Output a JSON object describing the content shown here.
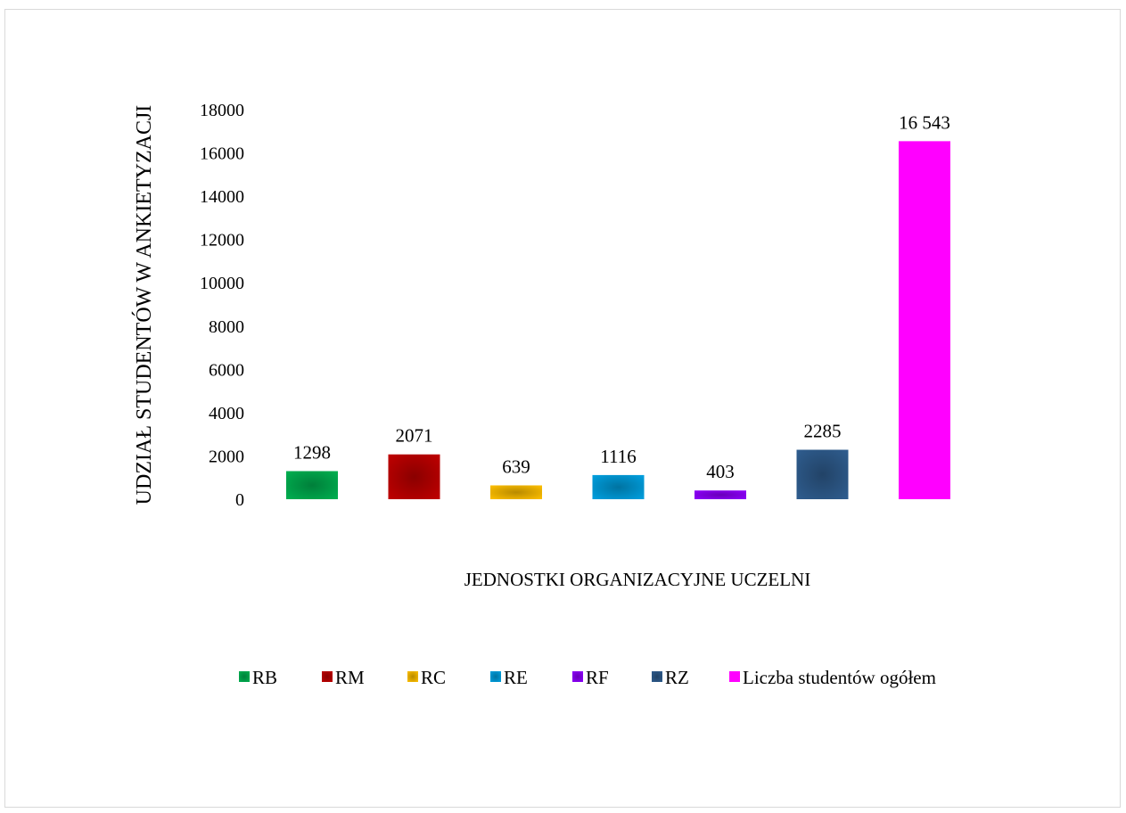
{
  "chart_data": {
    "type": "bar",
    "title": "",
    "xlabel": "JEDNOSTKI ORGANIZACYJNE UCZELNI",
    "ylabel": "UDZIAŁ STUDENTÓW W ANKIETYZACJI",
    "ylim": [
      0,
      18000
    ],
    "yticks": [
      "0",
      "2000",
      "4000",
      "6000",
      "8000",
      "10000",
      "12000",
      "14000",
      "16000",
      "18000"
    ],
    "grid": false,
    "legend_position": "bottom",
    "series": [
      {
        "name": "RB",
        "value": 1298,
        "label": "1298",
        "color": "#00b050"
      },
      {
        "name": "RM",
        "value": 2071,
        "label": "2071",
        "color": "#c00000"
      },
      {
        "name": "RC",
        "value": 639,
        "label": "639",
        "color": "#ffc000"
      },
      {
        "name": "RE",
        "value": 1116,
        "label": "1116",
        "color": "#00a0e0"
      },
      {
        "name": "RF",
        "value": 403,
        "label": "403",
        "color": "#9000ff"
      },
      {
        "name": "RZ",
        "value": 2285,
        "label": "2285",
        "color": "#2f5d8f"
      },
      {
        "name": "Liczba studentów ogółem",
        "value": 16543,
        "label": "16 543",
        "color": "#ff00ff"
      }
    ]
  }
}
